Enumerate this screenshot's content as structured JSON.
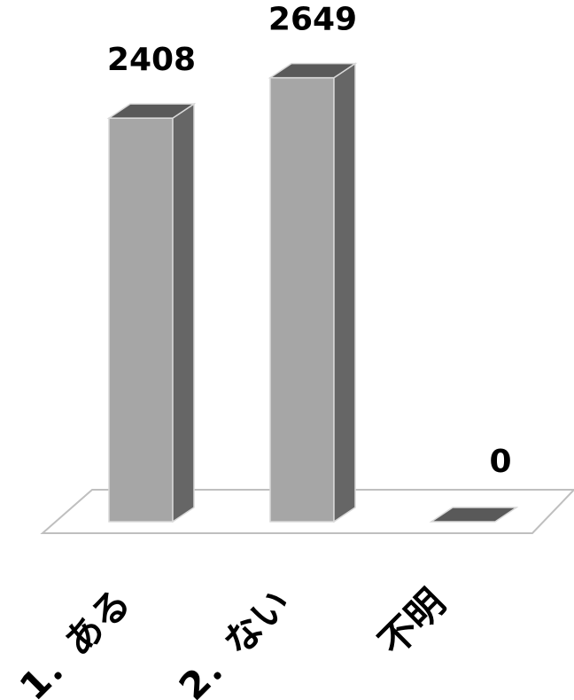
{
  "chart_data": {
    "type": "bar",
    "style": "3d-column",
    "categories": [
      "1．ある",
      "2．ない",
      "不明"
    ],
    "values": [
      2408,
      2649,
      0
    ],
    "data_labels": [
      "2408",
      "2649",
      "0"
    ],
    "title": "",
    "xlabel": "",
    "ylabel": "",
    "ylim": [
      0,
      2700
    ],
    "grid": false,
    "legend": "none",
    "colors": {
      "front": "#a6a6a6",
      "side": "#666666",
      "top": "#595959",
      "edge": "#d9d9d9",
      "floor": "#ffffff",
      "floor_edge": "#bfbfbf"
    }
  }
}
